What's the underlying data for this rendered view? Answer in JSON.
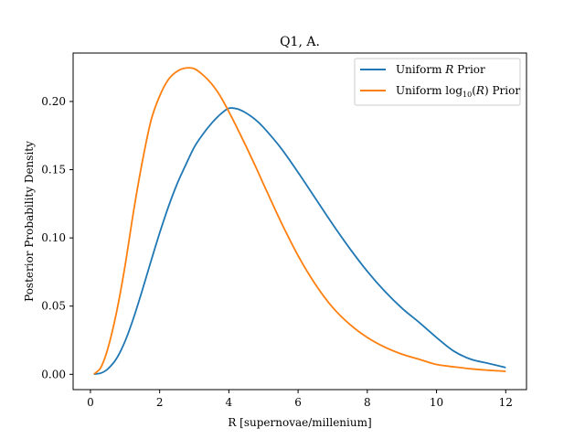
{
  "chart_data": {
    "type": "line",
    "title": "Q1, A.",
    "xlabel": "R [supernovae/millenium]",
    "ylabel": "Posterior Probability Density",
    "xlim": [
      -0.5,
      12.6
    ],
    "ylim": [
      -0.0112,
      0.2355
    ],
    "xticks": [
      0,
      2,
      4,
      6,
      8,
      10,
      12
    ],
    "xtick_labels": [
      "0",
      "2",
      "4",
      "6",
      "8",
      "10",
      "12"
    ],
    "yticks": [
      0.0,
      0.05,
      0.1,
      0.15,
      0.2
    ],
    "ytick_labels": [
      "0.00",
      "0.05",
      "0.10",
      "0.15",
      "0.20"
    ],
    "grid": false,
    "legend_position": "top-right",
    "series": [
      {
        "name": "Uniform R Prior",
        "color": "#1f77b4",
        "x": [
          0.1,
          0.3,
          0.5,
          0.75,
          1.0,
          1.25,
          1.5,
          1.75,
          2.0,
          2.25,
          2.5,
          2.75,
          3.0,
          3.25,
          3.5,
          3.75,
          4.0,
          4.25,
          4.5,
          4.75,
          5.0,
          5.5,
          6.0,
          6.5,
          7.0,
          7.5,
          8.0,
          8.5,
          9.0,
          9.5,
          10.0,
          10.5,
          11.0,
          11.5,
          12.0
        ],
        "y": [
          0.0001,
          0.0009,
          0.0039,
          0.0114,
          0.0242,
          0.0416,
          0.0618,
          0.083,
          0.1036,
          0.1226,
          0.1393,
          0.1533,
          0.1665,
          0.176,
          0.184,
          0.1905,
          0.195,
          0.1945,
          0.1915,
          0.187,
          0.181,
          0.166,
          0.148,
          0.129,
          0.11,
          0.092,
          0.0755,
          0.061,
          0.0485,
          0.038,
          0.027,
          0.017,
          0.011,
          0.008,
          0.005
        ]
      },
      {
        "name": "Uniform log10(R) Prior",
        "color": "#ff7f0e",
        "x": [
          0.1,
          0.3,
          0.5,
          0.75,
          1.0,
          1.25,
          1.5,
          1.75,
          2.0,
          2.25,
          2.5,
          2.75,
          3.0,
          3.25,
          3.5,
          3.75,
          4.0,
          4.25,
          4.5,
          4.75,
          5.0,
          5.5,
          6.0,
          6.5,
          7.0,
          7.5,
          8.0,
          8.5,
          9.0,
          9.5,
          10.0,
          10.5,
          11.0,
          11.5,
          12.0
        ],
        "y": [
          0.0002,
          0.005,
          0.0186,
          0.045,
          0.0795,
          0.12,
          0.156,
          0.186,
          0.204,
          0.216,
          0.222,
          0.2245,
          0.224,
          0.2195,
          0.213,
          0.204,
          0.1925,
          0.18,
          0.167,
          0.1535,
          0.1395,
          0.112,
          0.087,
          0.066,
          0.049,
          0.0365,
          0.027,
          0.02,
          0.0148,
          0.011,
          0.0072,
          0.0055,
          0.004,
          0.003,
          0.0022
        ]
      }
    ]
  },
  "legend": {
    "items": [
      {
        "prefix": "Uniform ",
        "math": "R",
        "suffix": " Prior"
      },
      {
        "prefix": "Uniform log",
        "sub": "10",
        "open": "(",
        "math": "R",
        "close": ")",
        "suffix": " Prior"
      }
    ]
  }
}
